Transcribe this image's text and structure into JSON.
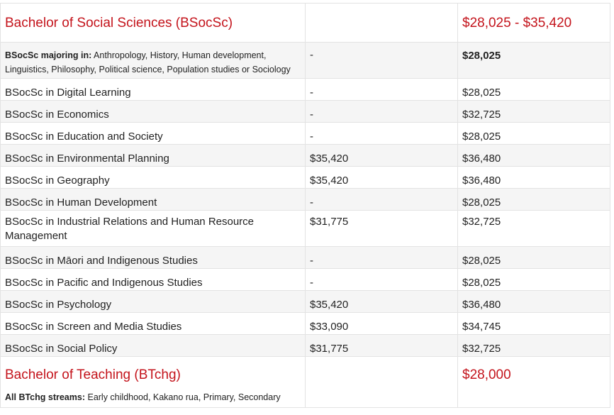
{
  "sections": [
    {
      "title": "Bachelor of Social Sciences (BSocSc)",
      "range": "$28,025 - $35,420",
      "majors_label": "BSocSc majoring in:",
      "majors_text": "Anthropology, History, Human development, Linguistics, Philosophy, Political science, Population studies or Sociology",
      "majors_mid": "-",
      "majors_price": "$28,025",
      "rows": [
        {
          "name": "BSocSc in Digital Learning",
          "mid": "-",
          "price": "$28,025"
        },
        {
          "name": "BSocSc in Economics",
          "mid": "-",
          "price": "$32,725"
        },
        {
          "name": "BSocSc in Education and Society",
          "mid": "-",
          "price": "$28,025"
        },
        {
          "name": "BSocSc in Environmental Planning",
          "mid": "$35,420",
          "price": "$36,480"
        },
        {
          "name": "BSocSc in Geography",
          "mid": "$35,420",
          "price": "$36,480"
        },
        {
          "name": "BSocSc in Human Development",
          "mid": "-",
          "price": "$28,025"
        },
        {
          "name": "BSocSc in Industrial Relations and Human Resource Management",
          "mid": "$31,775",
          "price": "$32,725"
        },
        {
          "name": "BSocSc in Māori and Indigenous Studies",
          "mid": "-",
          "price": "$28,025"
        },
        {
          "name": "BSocSc in Pacific and Indigenous Studies",
          "mid": "-",
          "price": "$28,025"
        },
        {
          "name": "BSocSc in Psychology",
          "mid": "$35,420",
          "price": "$36,480"
        },
        {
          "name": "BSocSc in Screen and Media Studies",
          "mid": "$33,090",
          "price": "$34,745"
        },
        {
          "name": "BSocSc in Social Policy",
          "mid": "$31,775",
          "price": "$32,725"
        }
      ]
    },
    {
      "title": "Bachelor of Teaching (BTchg)",
      "range": "$28,000",
      "streams_label": "All BTchg streams:",
      "streams_text": "Early childhood, Kakano rua, Primary, Secondary"
    }
  ]
}
